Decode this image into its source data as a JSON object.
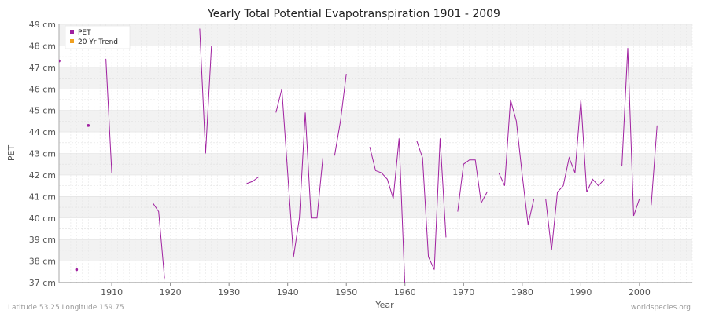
{
  "footer": {
    "left": "Latitude 53.25 Longitude 159.75",
    "right": "worldspecies.org"
  },
  "colors": {
    "pet": "#a020a0",
    "trend": "#f0a020",
    "band": "#f2f2f2",
    "grid": "#e0e0e0"
  },
  "chart_data": {
    "type": "line",
    "title": "Yearly Total Potential Evapotranspiration 1901 - 2009",
    "xlabel": "Year",
    "ylabel": "PET",
    "xlim": [
      1901,
      2009
    ],
    "ylim": [
      37,
      49
    ],
    "xticks": [
      1910,
      1920,
      1930,
      1940,
      1950,
      1960,
      1970,
      1980,
      1990,
      2000
    ],
    "yticks": [
      {
        "v": 37,
        "label": "37 cm"
      },
      {
        "v": 38,
        "label": "38 cm"
      },
      {
        "v": 39,
        "label": "39 cm"
      },
      {
        "v": 40,
        "label": "40 cm"
      },
      {
        "v": 41,
        "label": "41 cm"
      },
      {
        "v": 42,
        "label": "42 cm"
      },
      {
        "v": 43,
        "label": "43 cm"
      },
      {
        "v": 44,
        "label": "44 cm"
      },
      {
        "v": 45,
        "label": "45 cm"
      },
      {
        "v": 46,
        "label": "46 cm"
      },
      {
        "v": 47,
        "label": "47 cm"
      },
      {
        "v": 48,
        "label": "48 cm"
      },
      {
        "v": 49,
        "label": "49 cm"
      }
    ],
    "legend": [
      "PET",
      "20 Yr Trend"
    ],
    "legend_position": "top-left",
    "series": [
      {
        "name": "PET",
        "x": [
          1901,
          1902,
          1903,
          1904,
          1905,
          1906,
          1907,
          1908,
          1909,
          1910,
          1911,
          1912,
          1913,
          1914,
          1915,
          1916,
          1917,
          1918,
          1919,
          1920,
          1921,
          1922,
          1923,
          1924,
          1925,
          1926,
          1927,
          1928,
          1929,
          1930,
          1931,
          1932,
          1933,
          1934,
          1935,
          1936,
          1937,
          1938,
          1939,
          1940,
          1941,
          1942,
          1943,
          1944,
          1945,
          1946,
          1947,
          1948,
          1949,
          1950,
          1951,
          1952,
          1953,
          1954,
          1955,
          1956,
          1957,
          1958,
          1959,
          1960,
          1961,
          1962,
          1963,
          1964,
          1965,
          1966,
          1967,
          1968,
          1969,
          1970,
          1971,
          1972,
          1973,
          1974,
          1975,
          1976,
          1977,
          1978,
          1979,
          1980,
          1981,
          1982,
          1983,
          1984,
          1985,
          1986,
          1987,
          1988,
          1989,
          1990,
          1991,
          1992,
          1993,
          1994,
          1995,
          1996,
          1997,
          1998,
          1999,
          2000,
          2001,
          2002,
          2003,
          2004,
          2005,
          2006,
          2007,
          2008,
          2009
        ],
        "values": [
          47.3,
          null,
          null,
          37.6,
          null,
          44.3,
          null,
          null,
          47.4,
          42.1,
          null,
          null,
          null,
          null,
          null,
          null,
          40.7,
          40.3,
          37.2,
          null,
          null,
          null,
          null,
          null,
          48.8,
          43.0,
          48.0,
          null,
          null,
          null,
          null,
          null,
          41.6,
          41.7,
          41.9,
          null,
          null,
          44.9,
          46.0,
          42.1,
          38.2,
          40.0,
          44.9,
          40.0,
          40.0,
          42.8,
          null,
          42.9,
          44.5,
          46.7,
          null,
          null,
          null,
          43.3,
          42.2,
          42.1,
          41.8,
          40.9,
          43.7,
          36.8,
          null,
          43.6,
          42.8,
          38.2,
          37.6,
          43.7,
          39.1,
          null,
          40.3,
          42.5,
          42.7,
          42.7,
          40.7,
          41.2,
          null,
          42.1,
          41.5,
          45.5,
          44.5,
          42.0,
          39.7,
          40.9,
          null,
          40.9,
          38.5,
          41.2,
          41.5,
          42.8,
          42.1,
          45.5,
          41.2,
          41.8,
          41.5,
          41.8,
          null,
          null,
          42.4,
          47.9,
          40.1,
          40.9,
          null,
          40.6,
          44.3,
          null,
          null,
          null,
          null,
          null,
          null
        ]
      }
    ]
  }
}
